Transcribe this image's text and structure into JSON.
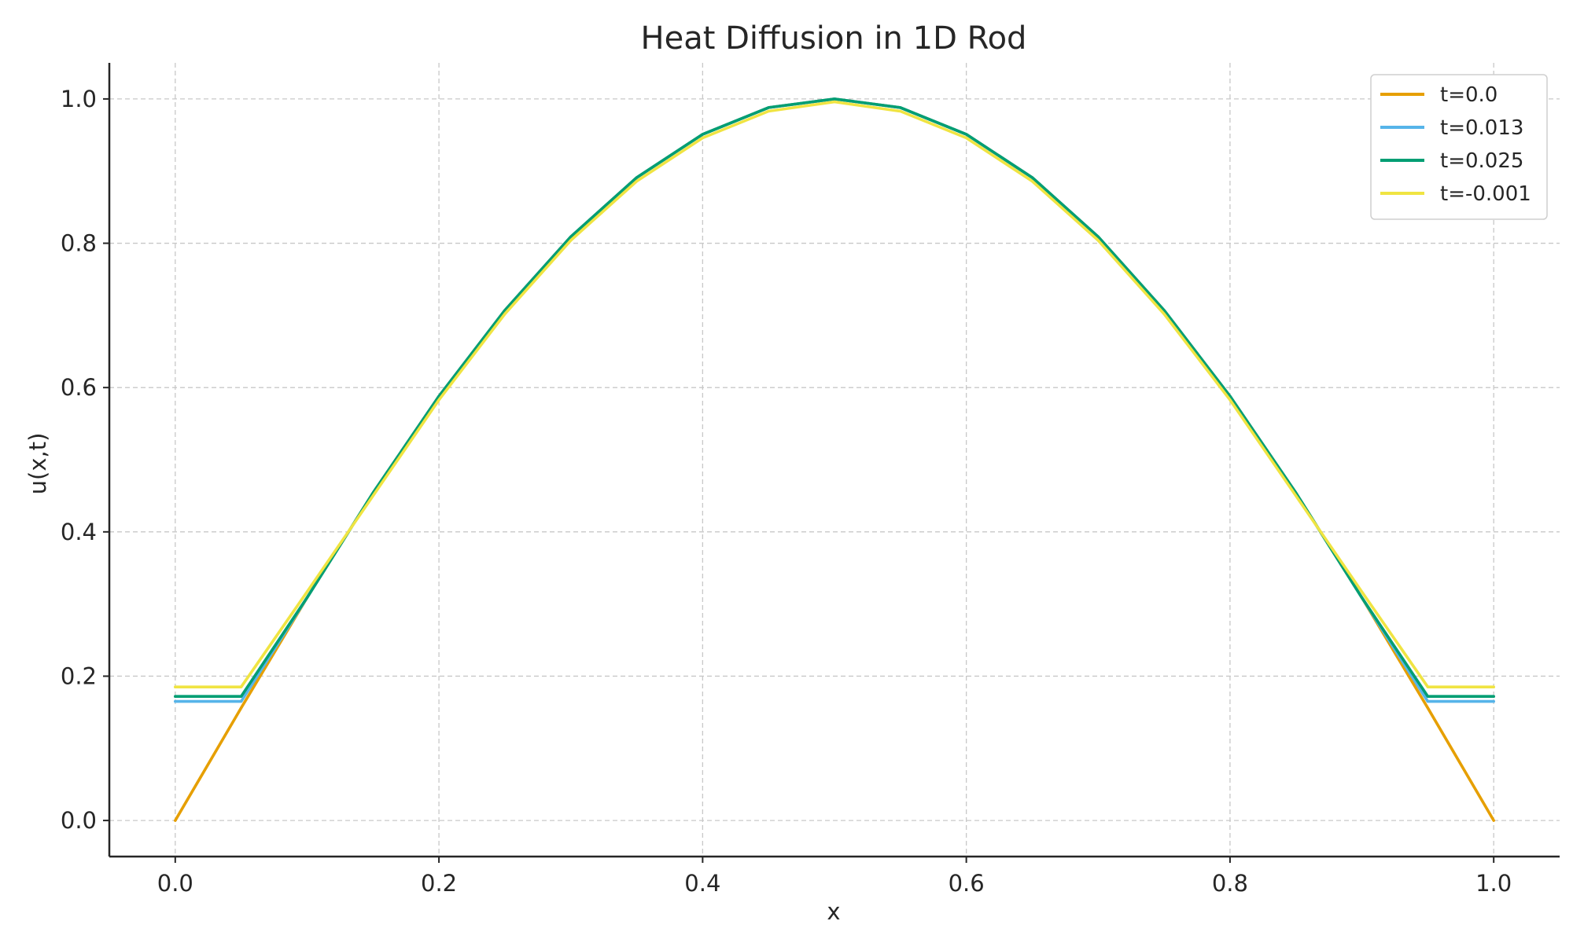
{
  "chart_data": {
    "type": "line",
    "title": "Heat Diffusion in 1D Rod",
    "xlabel": "x",
    "ylabel": "u(x,t)",
    "xlim": [
      -0.05,
      1.05
    ],
    "ylim": [
      -0.05,
      1.05
    ],
    "xticks": [
      0.0,
      0.2,
      0.4,
      0.6,
      0.8,
      1.0
    ],
    "xtick_labels": [
      "0.0",
      "0.2",
      "0.4",
      "0.6",
      "0.8",
      "1.0"
    ],
    "yticks": [
      0.0,
      0.2,
      0.4,
      0.6,
      0.8,
      1.0
    ],
    "ytick_labels": [
      "0.0",
      "0.2",
      "0.4",
      "0.6",
      "0.8",
      "1.0"
    ],
    "grid": true,
    "legend_position": "top-right",
    "x": [
      0.0,
      0.05,
      0.1,
      0.15,
      0.2,
      0.25,
      0.3,
      0.35,
      0.4,
      0.45,
      0.5,
      0.55,
      0.6,
      0.65,
      0.7,
      0.75,
      0.8,
      0.85,
      0.9,
      0.95,
      1.0
    ],
    "series": [
      {
        "name": "t=0.0",
        "color": "#E69F00",
        "values": [
          0.0,
          0.156,
          0.309,
          0.454,
          0.588,
          0.707,
          0.809,
          0.891,
          0.951,
          0.988,
          1.0,
          0.988,
          0.951,
          0.891,
          0.809,
          0.707,
          0.588,
          0.454,
          0.309,
          0.156,
          0.0
        ]
      },
      {
        "name": "t=0.013",
        "color": "#56B4E9",
        "values": [
          0.165,
          0.165,
          0.309,
          0.454,
          0.588,
          0.707,
          0.809,
          0.891,
          0.951,
          0.988,
          1.0,
          0.988,
          0.951,
          0.891,
          0.809,
          0.707,
          0.588,
          0.454,
          0.309,
          0.165,
          0.165
        ]
      },
      {
        "name": "t=0.025",
        "color": "#009E73",
        "values": [
          0.172,
          0.172,
          0.309,
          0.454,
          0.588,
          0.707,
          0.809,
          0.891,
          0.951,
          0.988,
          1.0,
          0.988,
          0.951,
          0.891,
          0.809,
          0.707,
          0.588,
          0.454,
          0.309,
          0.172,
          0.172
        ]
      },
      {
        "name": "t=-0.001",
        "color": "#F0E442",
        "values": [
          0.185,
          0.185,
          0.317,
          0.45,
          0.583,
          0.702,
          0.804,
          0.886,
          0.946,
          0.983,
          0.996,
          0.983,
          0.946,
          0.886,
          0.804,
          0.702,
          0.583,
          0.45,
          0.317,
          0.185,
          0.185
        ]
      }
    ]
  }
}
